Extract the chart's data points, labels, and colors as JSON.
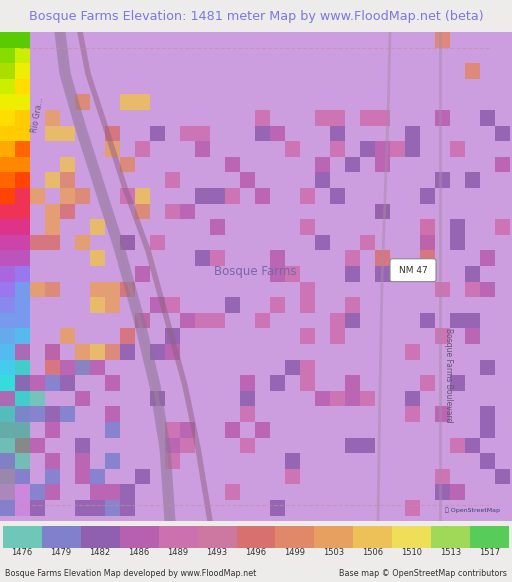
{
  "title": "Bosque Farms Elevation: 1481 meter Map by www.FloodMap.net (beta)",
  "title_color": "#7777ee",
  "title_bg": "#eeecea",
  "footer_left": "Bosque Farms Elevation Map developed by www.FloodMap.net",
  "footer_right": "Base map © OpenStreetMap contributors",
  "colorbar_values": [
    1476,
    1479,
    1482,
    1486,
    1489,
    1493,
    1496,
    1499,
    1503,
    1506,
    1510,
    1513,
    1517
  ],
  "colorbar_colors": [
    "#6dc8b8",
    "#8080cc",
    "#9060b0",
    "#b860b0",
    "#cc70b0",
    "#cc78a0",
    "#d87070",
    "#e08868",
    "#e8a060",
    "#eec058",
    "#eede58",
    "#a0d858",
    "#58cc58"
  ],
  "map_bg": "#cc9ee0",
  "fig_width": 5.12,
  "fig_height": 5.82,
  "map_left_colors": [
    [
      0,
      "#58cc00"
    ],
    [
      1,
      "#88dd00"
    ],
    [
      2,
      "#aaee00"
    ],
    [
      3,
      "#ddee00"
    ],
    [
      4,
      "#ffdd00"
    ],
    [
      5,
      "#ffcc00"
    ],
    [
      6,
      "#ffaa00"
    ],
    [
      7,
      "#ff8800"
    ],
    [
      8,
      "#ff6600"
    ],
    [
      9,
      "#ff4400"
    ],
    [
      10,
      "#ee3344"
    ],
    [
      11,
      "#dd3388"
    ],
    [
      12,
      "#cc44aa"
    ],
    [
      13,
      "#bb55cc"
    ],
    [
      14,
      "#aa66dd"
    ],
    [
      15,
      "#9977ee"
    ]
  ]
}
